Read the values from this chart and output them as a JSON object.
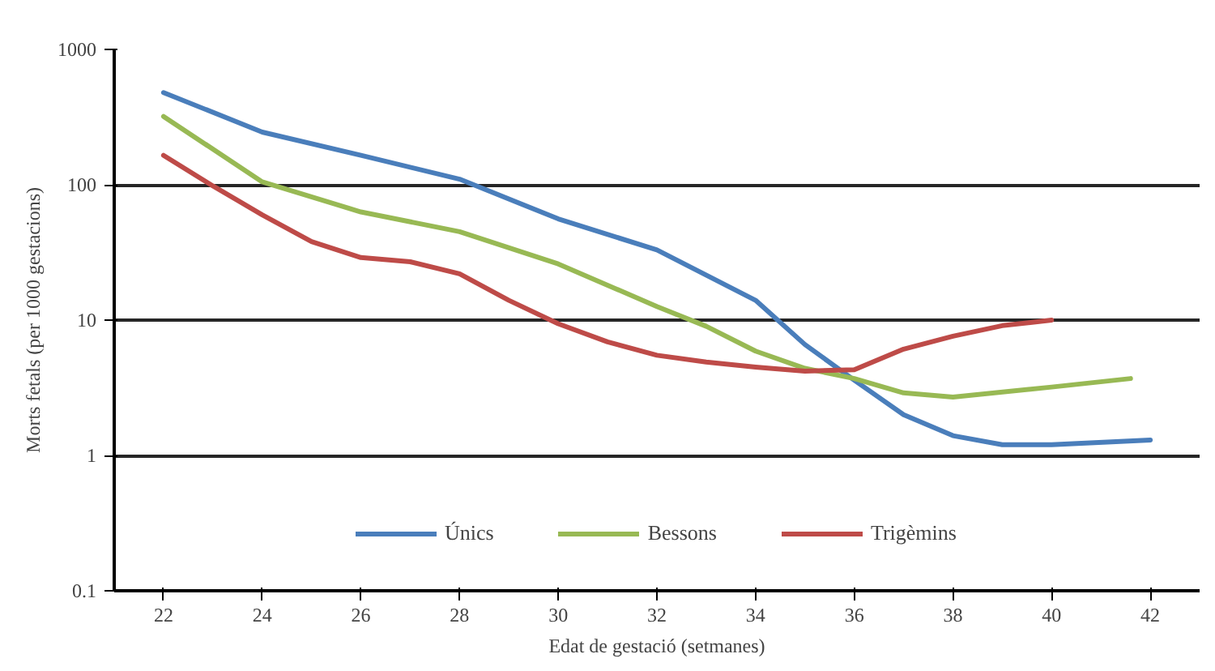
{
  "chart_data": {
    "type": "line",
    "xlabel": "Edat de gestació (setmanes)",
    "ylabel": "Morts fetals (per 1000 gestacions)",
    "log": "y",
    "grid": "y",
    "legend": "bottom",
    "marker": "none",
    "line_style": "solid",
    "xlim": [
      21,
      43
    ],
    "xticks": [
      22,
      24,
      26,
      28,
      30,
      32,
      34,
      36,
      38,
      40,
      42
    ],
    "ylim": [
      0.1,
      1000
    ],
    "yticks": [
      0.1,
      1,
      10,
      100,
      1000
    ],
    "series": [
      {
        "name": "Únics",
        "color": "#4a7ebb",
        "x": [
          22,
          24,
          26,
          28,
          30,
          32,
          34,
          35,
          36,
          37,
          38,
          39,
          40,
          42
        ],
        "values": [
          480,
          245,
          165,
          110,
          56,
          33,
          14,
          6.6,
          3.6,
          2.0,
          1.4,
          1.2,
          1.2,
          1.3
        ]
      },
      {
        "name": "Bessons",
        "color": "#98b954",
        "x": [
          22,
          24,
          26,
          28,
          30,
          32,
          33,
          34,
          35,
          36,
          37,
          38,
          40,
          41.6
        ],
        "values": [
          320,
          105,
          63,
          45,
          26,
          12.6,
          9,
          5.9,
          4.4,
          3.7,
          2.9,
          2.7,
          3.2,
          3.7
        ]
      },
      {
        "name": "Trigèmins",
        "color": "#be4b48",
        "x": [
          22,
          23,
          24,
          25,
          26,
          27,
          28,
          29,
          30,
          31,
          32,
          33,
          34,
          35,
          36,
          37,
          38,
          39,
          40
        ],
        "values": [
          165,
          98,
          60,
          38,
          29,
          27,
          22,
          14,
          9.4,
          6.9,
          5.5,
          4.9,
          4.5,
          4.2,
          4.3,
          6.1,
          7.6,
          9.1,
          10
        ]
      }
    ]
  }
}
